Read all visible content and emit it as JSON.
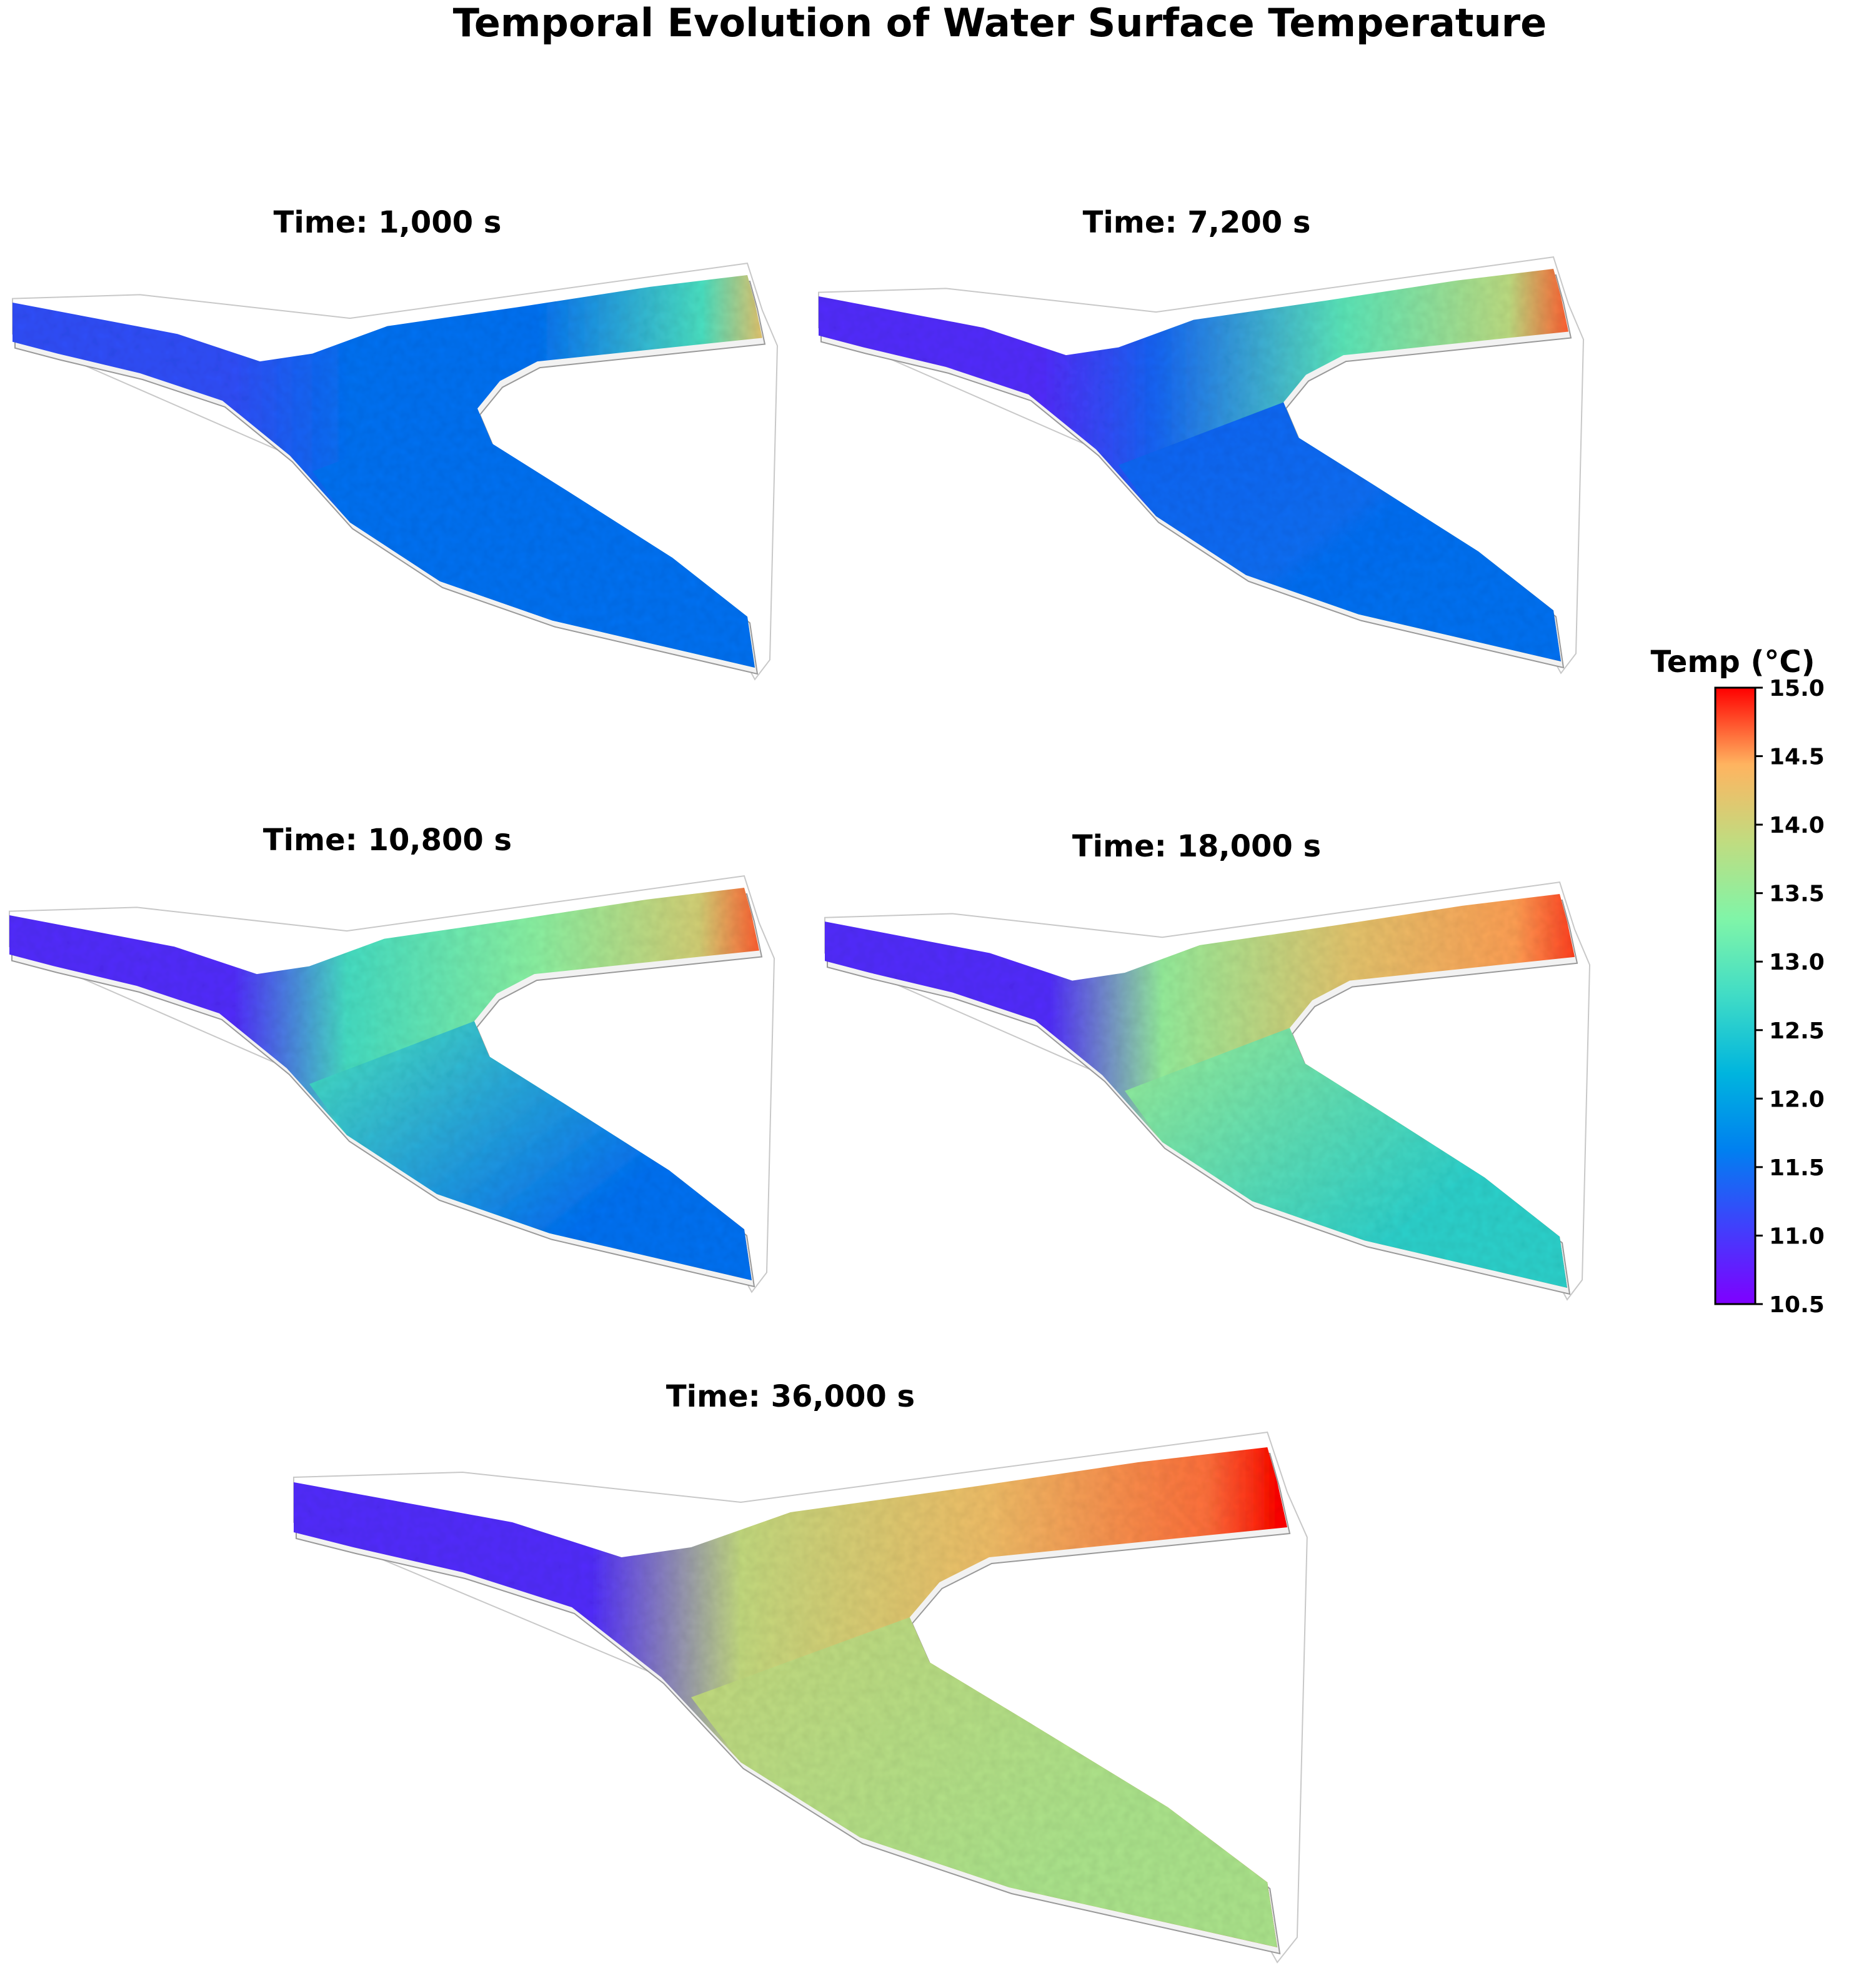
{
  "figure_title": "Temporal Evolution of Water Surface Temperature",
  "chart_data": {
    "type": "heatmap",
    "title": "Temporal Evolution of Water Surface Temperature",
    "colorbar": {
      "label": "Temp (°C)",
      "range": [
        10.5,
        15.0
      ],
      "ticks": [
        "15.0",
        "14.5",
        "14.0",
        "13.5",
        "13.0",
        "12.5",
        "12.0",
        "11.5",
        "11.0",
        "10.5"
      ],
      "colormap": "rainbow"
    },
    "panels": [
      {
        "title": "Time: 1,000 s",
        "time_s": 1000,
        "left_arm_temp": 11.2,
        "junction_temp": 11.5,
        "upper_arm_temp": 11.5,
        "lower_arm_temp": 11.5,
        "upper_inlet_temp": 14.2
      },
      {
        "title": "Time: 7,200 s",
        "time_s": 7200,
        "left_arm_temp": 10.9,
        "junction_temp": 11.4,
        "upper_arm_temp": 13.0,
        "lower_arm_temp": 11.5,
        "upper_inlet_temp": 14.7
      },
      {
        "title": "Time: 10,800 s",
        "time_s": 10800,
        "left_arm_temp": 10.9,
        "junction_temp": 12.8,
        "upper_arm_temp": 13.4,
        "lower_arm_temp": 11.5,
        "upper_inlet_temp": 14.7
      },
      {
        "title": "Time: 18,000 s",
        "time_s": 18000,
        "left_arm_temp": 10.9,
        "junction_temp": 13.5,
        "upper_arm_temp": 14.2,
        "lower_arm_temp": 12.6,
        "upper_inlet_temp": 14.8
      },
      {
        "title": "Time: 36,000 s",
        "time_s": 36000,
        "left_arm_temp": 10.9,
        "junction_temp": 13.9,
        "upper_arm_temp": 14.3,
        "lower_arm_temp": 13.7,
        "upper_inlet_temp": 15.0
      }
    ]
  }
}
